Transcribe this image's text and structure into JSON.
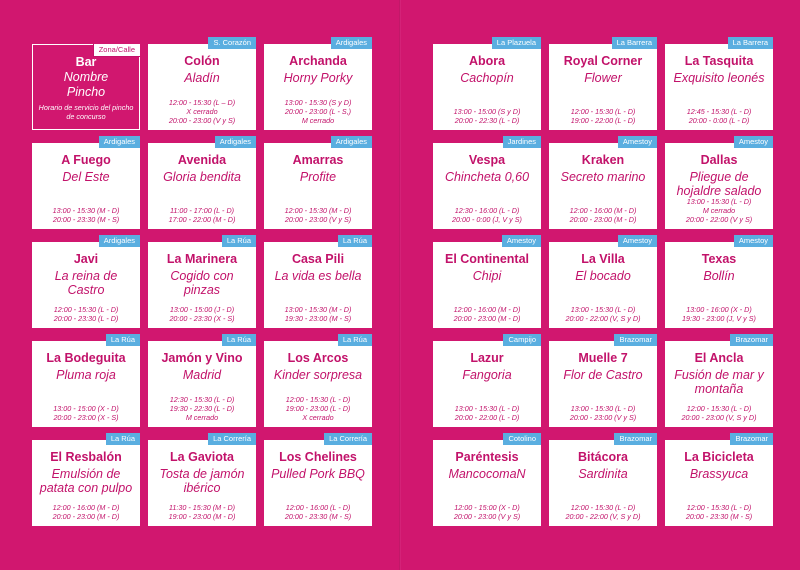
{
  "legend": {
    "zone": "Zona/Calle",
    "bar": "Bar",
    "pincho_lines": [
      "Nombre",
      "Pincho"
    ],
    "note": "Horario de servicio del pincho de concurso"
  },
  "left": [
    {
      "zone": "S. Corazón",
      "bar": "Colón",
      "pincho": "Aladín",
      "hours": [
        "12:00 - 15:30 (L – D)",
        "X cerrado",
        "20:00 - 23:00 (V y S)"
      ]
    },
    {
      "zone": "Ardigales",
      "bar": "Archanda",
      "pincho": "Horny Porky",
      "hours": [
        "13:00 - 15:30 (S y D)",
        "20:00 - 23:00 (L - S,)",
        "M cerrado"
      ]
    },
    {
      "zone": "Ardigales",
      "bar": "A Fuego",
      "pincho": "Del Este",
      "hours": [
        "13:00 - 15:30 (M - D)",
        "20:00 - 23:30 (M - S)"
      ]
    },
    {
      "zone": "Ardigales",
      "bar": "Avenida",
      "pincho": "Gloria bendita",
      "hours": [
        "11:00 - 17:00 (L - D)",
        "17:00 - 22:00 (M - D)"
      ]
    },
    {
      "zone": "Ardigales",
      "bar": "Amarras",
      "pincho": "Profite",
      "hours": [
        "12:00 - 15:30 (M - D)",
        "20:00 - 23:00 (V y S)"
      ]
    },
    {
      "zone": "Ardigales",
      "bar": "Javi",
      "pincho": "La reina de Castro",
      "hours": [
        "12:00 - 15:30 (L - D)",
        "20:00 - 23:30 (L - D)"
      ]
    },
    {
      "zone": "La Rúa",
      "bar": "La Marinera",
      "pincho": "Cogido con pinzas",
      "hours": [
        "13:00 - 15:00 (J - D)",
        "20:00 - 23:30 (X - S)"
      ]
    },
    {
      "zone": "La Rúa",
      "bar": "Casa Pili",
      "pincho": "La vida es bella",
      "hours": [
        "13:00 - 15:30 (M - D)",
        "19:30 - 23:00 (M - S)"
      ]
    },
    {
      "zone": "La Rúa",
      "bar": "La Bodeguita",
      "pincho": "Pluma roja",
      "hours": [
        "13:00 - 15:00 (X - D)",
        "20:00 - 23:00 (X - S)"
      ]
    },
    {
      "zone": "La Rúa",
      "bar": "Jamón y Vino",
      "pincho": "Madrid",
      "hours": [
        "12:30 - 15:30 (L - D)",
        "19:30 - 22:30 (L - D)",
        "M cerrado"
      ]
    },
    {
      "zone": "La Rúa",
      "bar": "Los Arcos",
      "pincho": "Kinder sorpresa",
      "hours": [
        "12:00 - 15:30 (L - D)",
        "19:00 - 23:00 (L - D)",
        "X cerrado"
      ]
    },
    {
      "zone": "La Rúa",
      "bar": "El Resbalón",
      "pincho": "Emulsión de patata con pulpo",
      "hours": [
        "12:00 - 16:00 (M - D)",
        "20:00 - 23:00 (M - D)"
      ]
    },
    {
      "zone": "La Correría",
      "bar": "La Gaviota",
      "pincho": "Tosta de jamón ibérico",
      "hours": [
        "11:30 - 15:30 (M - D)",
        "19:00 - 23:00 (M - D)"
      ]
    },
    {
      "zone": "La Correría",
      "bar": "Los Chelines",
      "pincho": "Pulled Pork BBQ",
      "hours": [
        "12:00 - 16:00 (L - D)",
        "20:00 - 23:30 (M - S)"
      ]
    }
  ],
  "right": [
    {
      "zone": "La Plazuela",
      "bar": "Abora",
      "pincho": "Cachopín",
      "hours": [
        "13:00 - 15:00 (S y D)",
        "20:00 - 22:30 (L - D)"
      ]
    },
    {
      "zone": "La Barrera",
      "bar": "Royal Corner",
      "pincho": "Flower",
      "hours": [
        "12:00 - 15:30 (L - D)",
        "19:00 - 22:00 (L - D)"
      ]
    },
    {
      "zone": "La Barrera",
      "bar": "La Tasquita",
      "pincho": "Exquisito leonés",
      "hours": [
        "12:45 - 15:30 (L - D)",
        "20:00 - 0:00 (L - D)"
      ]
    },
    {
      "zone": "Jardines",
      "bar": "Vespa",
      "pincho": "Chincheta 0,60",
      "hours": [
        "12:30 - 16:00 (L - D)",
        "20:00 - 0:00 (J, V y S)"
      ]
    },
    {
      "zone": "Amestoy",
      "bar": "Kraken",
      "pincho": "Secreto marino",
      "hours": [
        "12:00 - 16:00 (M - D)",
        "20:00 - 23:00 (M - D)"
      ]
    },
    {
      "zone": "Amestoy",
      "bar": "Dallas",
      "pincho": "Pliegue de hojaldre salado",
      "hours": [
        "13:00 - 15:30 (L - D)",
        "M cerrado",
        "20:00 - 22:00 (V y S)"
      ]
    },
    {
      "zone": "Amestoy",
      "bar": "El Continental",
      "pincho": "Chipi",
      "hours": [
        "12:00 - 16:00 (M - D)",
        "20:00 - 23:00 (M - D)"
      ]
    },
    {
      "zone": "Amestoy",
      "bar": "La Villa",
      "pincho": "El bocado",
      "hours": [
        "13:00 - 15:30 (L - D)",
        "20:00 - 22:00 (V, S y D)"
      ]
    },
    {
      "zone": "Amestoy",
      "bar": "Texas",
      "pincho": "Bollín",
      "hours": [
        "13:00 - 16:00 (X - D)",
        "19:30 - 23:00 (J, V y S)"
      ]
    },
    {
      "zone": "Campijo",
      "bar": "Lazur",
      "pincho": "Fangoria",
      "hours": [
        "13:00 - 15:30 (L - D)",
        "20:00 - 22:00 (L - D)"
      ]
    },
    {
      "zone": "Brazomar",
      "bar": "Muelle 7",
      "pincho": "Flor de Castro",
      "hours": [
        "13:00 - 15:30 (L - D)",
        "20:00 - 23:00 (V y S)"
      ]
    },
    {
      "zone": "Brazomar",
      "bar": "El Ancla",
      "pincho": "Fusión de mar y montaña",
      "hours": [
        "12:00 - 15:30 (L - D)",
        "20:00 - 23:00 (V, S y D)"
      ]
    },
    {
      "zone": "Cotolino",
      "bar": "Paréntesis",
      "pincho": "MancocomaN",
      "hours": [
        "12:00 - 15:00 (X - D)",
        "20:00 - 23:00 (V y S)"
      ]
    },
    {
      "zone": "Brazomar",
      "bar": "Bitácora",
      "pincho": "Sardinita",
      "hours": [
        "12:00 - 15:30 (L - D)",
        "20:00 - 22:00 (V, S y D)"
      ]
    },
    {
      "zone": "Brazomar",
      "bar": "La Bicicleta",
      "pincho": "Brassyuca",
      "hours": [
        "12:00 - 15:30 (L - D)",
        "20:00 - 23:30 (M - S)"
      ]
    }
  ]
}
